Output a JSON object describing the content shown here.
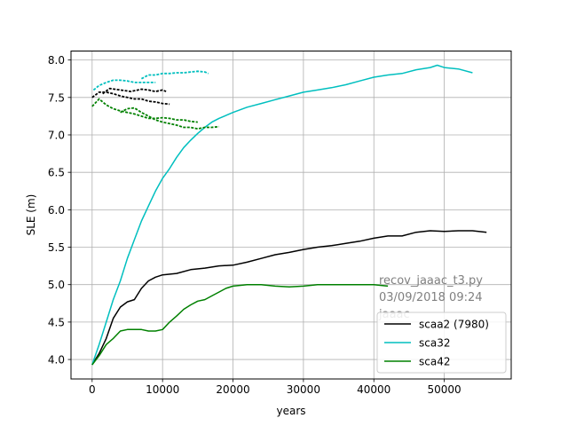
{
  "chart_data": {
    "type": "line",
    "title": "",
    "xlabel": "years",
    "ylabel": "SLE (m)",
    "xlim": [
      -3000,
      59500
    ],
    "ylim": [
      3.74,
      8.12
    ],
    "xticks": [
      0,
      10000,
      20000,
      30000,
      40000,
      50000
    ],
    "xtick_labels": [
      "0",
      "10000",
      "20000",
      "30000",
      "40000",
      "50000"
    ],
    "yticks": [
      4.0,
      4.5,
      5.0,
      5.5,
      6.0,
      6.5,
      7.0,
      7.5,
      8.0
    ],
    "ytick_labels": [
      "4.0",
      "4.5",
      "5.0",
      "5.5",
      "6.0",
      "6.5",
      "7.0",
      "7.5",
      "8.0"
    ],
    "grid": true,
    "legend_position": "lower-right",
    "annotation_lines": [
      "recov_jaaac_t3.py",
      "03/09/2018 09:24",
      "jaaac"
    ],
    "series": [
      {
        "name": "scaa2 (7980)",
        "color": "#000000",
        "style": "solid",
        "x": [
          0,
          1000,
          2000,
          3000,
          4000,
          5000,
          6000,
          7000,
          8000,
          9000,
          10000,
          12000,
          14000,
          16000,
          18000,
          20000,
          22000,
          24000,
          26000,
          28000,
          30000,
          32000,
          34000,
          36000,
          38000,
          40000,
          42000,
          44000,
          46000,
          48000,
          50000,
          52000,
          54000,
          56000
        ],
        "y": [
          3.93,
          4.08,
          4.28,
          4.55,
          4.7,
          4.77,
          4.8,
          4.95,
          5.05,
          5.1,
          5.13,
          5.15,
          5.2,
          5.22,
          5.25,
          5.26,
          5.3,
          5.35,
          5.4,
          5.43,
          5.47,
          5.5,
          5.52,
          5.55,
          5.58,
          5.62,
          5.65,
          5.65,
          5.7,
          5.72,
          5.71,
          5.72,
          5.72,
          5.7
        ]
      },
      {
        "name": "sca32",
        "color": "#00bfbf",
        "style": "solid",
        "x": [
          0,
          1000,
          2000,
          3000,
          4000,
          5000,
          6000,
          7000,
          8000,
          9000,
          10000,
          11000,
          12000,
          13000,
          14000,
          15000,
          16000,
          17000,
          18000,
          20000,
          22000,
          24000,
          26000,
          28000,
          30000,
          32000,
          34000,
          36000,
          38000,
          40000,
          42000,
          44000,
          46000,
          48000,
          49000,
          50000,
          52000,
          54000
        ],
        "y": [
          3.93,
          4.2,
          4.5,
          4.8,
          5.05,
          5.35,
          5.6,
          5.85,
          6.05,
          6.25,
          6.42,
          6.55,
          6.7,
          6.83,
          6.93,
          7.02,
          7.1,
          7.17,
          7.22,
          7.3,
          7.37,
          7.42,
          7.47,
          7.52,
          7.57,
          7.6,
          7.63,
          7.67,
          7.72,
          7.77,
          7.8,
          7.82,
          7.87,
          7.9,
          7.93,
          7.9,
          7.88,
          7.83
        ]
      },
      {
        "name": "sca42",
        "color": "#008000",
        "style": "solid",
        "x": [
          0,
          1000,
          2000,
          3000,
          4000,
          5000,
          6000,
          7000,
          8000,
          9000,
          10000,
          11000,
          12000,
          13000,
          14000,
          15000,
          16000,
          17000,
          18000,
          19000,
          20000,
          22000,
          24000,
          26000,
          28000,
          30000,
          32000,
          34000,
          36000,
          38000,
          40000,
          42000
        ],
        "y": [
          3.93,
          4.05,
          4.2,
          4.28,
          4.38,
          4.4,
          4.4,
          4.4,
          4.38,
          4.38,
          4.4,
          4.5,
          4.58,
          4.67,
          4.73,
          4.78,
          4.8,
          4.85,
          4.9,
          4.95,
          4.98,
          5.0,
          5.0,
          4.98,
          4.97,
          4.98,
          5.0,
          5.0,
          5.0,
          5.0,
          5.0,
          4.98
        ]
      },
      {
        "color": "#000000",
        "style": "dashed",
        "x": [
          0,
          1000,
          2000,
          3000,
          4000,
          5000,
          6000,
          7000,
          8000,
          9000,
          10000,
          11000
        ],
        "y": [
          7.5,
          7.57,
          7.57,
          7.55,
          7.52,
          7.5,
          7.48,
          7.48,
          7.45,
          7.44,
          7.42,
          7.41
        ]
      },
      {
        "color": "#000000",
        "style": "dashed",
        "x": [
          1500,
          2500,
          4000,
          5500,
          7000,
          8000,
          9000,
          10000,
          10500
        ],
        "y": [
          7.55,
          7.62,
          7.6,
          7.58,
          7.61,
          7.6,
          7.58,
          7.6,
          7.58
        ]
      },
      {
        "color": "#00bfbf",
        "style": "dashed",
        "x": [
          200,
          1000,
          2000,
          3000,
          4000,
          5000,
          6000,
          7000,
          8000,
          9000
        ],
        "y": [
          7.6,
          7.66,
          7.7,
          7.73,
          7.73,
          7.72,
          7.7,
          7.7,
          7.7,
          7.7
        ]
      },
      {
        "color": "#00bfbf",
        "style": "dashed",
        "x": [
          7000,
          8000,
          9000,
          10000,
          11000,
          12000,
          13000,
          14000,
          15000,
          16000,
          16500
        ],
        "y": [
          7.75,
          7.8,
          7.8,
          7.82,
          7.82,
          7.83,
          7.83,
          7.84,
          7.85,
          7.84,
          7.82
        ]
      },
      {
        "color": "#008000",
        "style": "dashed",
        "x": [
          0,
          1000,
          2000,
          3000,
          4000,
          5000,
          6000,
          7000,
          8000,
          9000,
          10000,
          11000,
          12000,
          13000,
          14000,
          15000
        ],
        "y": [
          7.38,
          7.48,
          7.4,
          7.35,
          7.32,
          7.3,
          7.28,
          7.25,
          7.22,
          7.22,
          7.23,
          7.22,
          7.2,
          7.2,
          7.18,
          7.17
        ]
      },
      {
        "color": "#008000",
        "style": "dashed",
        "x": [
          4000,
          5000,
          6000,
          7000,
          8000,
          9000,
          10000,
          11000,
          12000,
          13000,
          14000,
          15000,
          16000,
          17000,
          18000
        ],
        "y": [
          7.3,
          7.35,
          7.36,
          7.3,
          7.25,
          7.2,
          7.17,
          7.15,
          7.13,
          7.1,
          7.1,
          7.08,
          7.1,
          7.1,
          7.11
        ]
      }
    ]
  }
}
